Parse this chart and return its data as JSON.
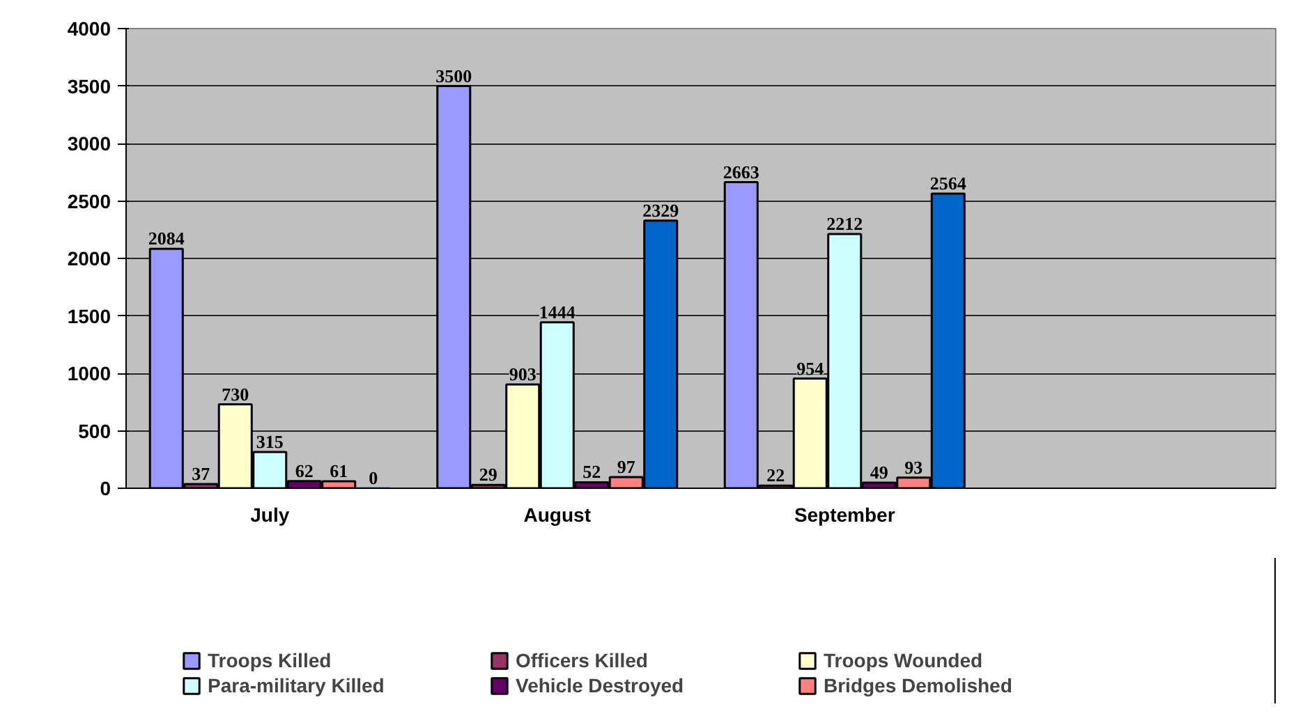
{
  "chart_data": {
    "type": "bar",
    "categories": [
      "July",
      "August",
      "September",
      null
    ],
    "series": [
      {
        "name": "Troops Killed",
        "color": "#9999ff",
        "values": [
          2084,
          3500,
          2663,
          null
        ]
      },
      {
        "name": "Officers Killed",
        "color": "#993366",
        "values": [
          37,
          29,
          22,
          null
        ]
      },
      {
        "name": "Troops Wounded",
        "color": "#ffffcc",
        "values": [
          730,
          903,
          954,
          null
        ]
      },
      {
        "name": "Para-military Killed",
        "color": "#ccffff",
        "values": [
          315,
          1444,
          2212,
          null
        ]
      },
      {
        "name": "Vehicle Destroyed",
        "color": "#660066",
        "values": [
          62,
          52,
          49,
          null
        ]
      },
      {
        "name": "Bridges Demolished",
        "color": "#ff8080",
        "values": [
          61,
          97,
          93,
          null
        ]
      },
      {
        "color": "#0066cc",
        "values": [
          0,
          2329,
          2564,
          null
        ]
      }
    ],
    "ylim": [
      0,
      4000
    ],
    "yticks": [
      0,
      500,
      1000,
      1500,
      2000,
      2500,
      3000,
      3500,
      4000
    ],
    "grid": "y",
    "legend": "bottom",
    "data_labels": true
  }
}
